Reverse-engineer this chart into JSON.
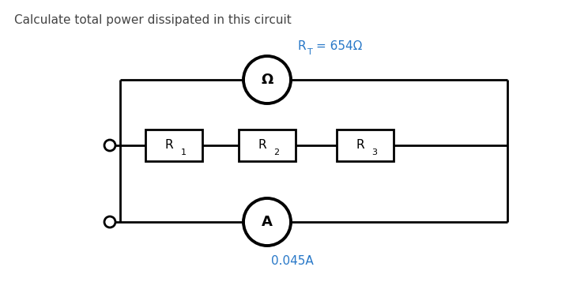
{
  "title": "Calculate total power dissipated in this circuit",
  "title_fontsize": 11,
  "title_color": "#444444",
  "rt_color": "#2878c8",
  "rt_value": "= 654Ω",
  "ohmmeter_label": "Ω",
  "ammeter_label": "A",
  "ammeter_value": "0.045A",
  "ammeter_color": "#2878c8",
  "r1_label": "R",
  "r1_sub": "1",
  "r2_label": "R",
  "r2_sub": "2",
  "r3_label": "R",
  "r3_sub": "3",
  "line_color": "#000000",
  "bg_color": "#ffffff",
  "figsize": [
    7.25,
    3.76
  ],
  "dpi": 100,
  "xlim": [
    0,
    7.25
  ],
  "ylim": [
    0,
    3.76
  ]
}
